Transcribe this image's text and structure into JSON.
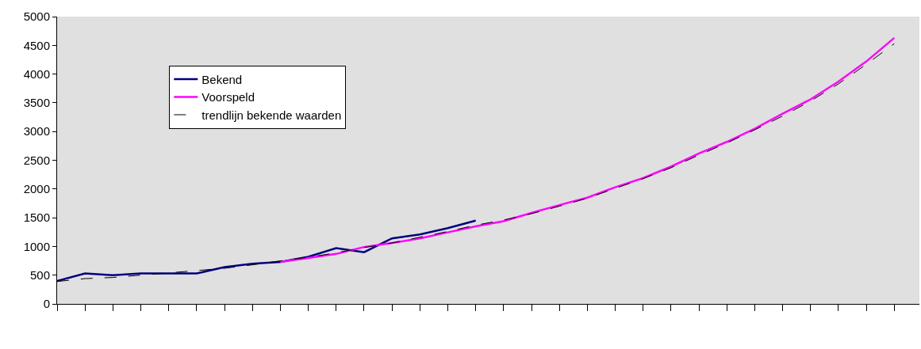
{
  "chart_data": {
    "type": "line",
    "categories": [
      null,
      null,
      null,
      null,
      null,
      null,
      null,
      null,
      null,
      null,
      null,
      null,
      null,
      null,
      null,
      null,
      null,
      null,
      null,
      null,
      null,
      null,
      null,
      null,
      null,
      null,
      null,
      null,
      null,
      null,
      null
    ],
    "series": [
      {
        "name": "Bekend",
        "color": "#000080",
        "line_style": "solid",
        "values": [
          400,
          530,
          500,
          530,
          530,
          530,
          640,
          700,
          730,
          820,
          970,
          900,
          1140,
          1210,
          1320,
          1450,
          null,
          null,
          null,
          null,
          null,
          null,
          null,
          null,
          null,
          null,
          null,
          null,
          null,
          null,
          null
        ]
      },
      {
        "name": "Voorspeld",
        "color": "#ff00ff",
        "line_style": "solid",
        "values": [
          null,
          null,
          null,
          null,
          null,
          null,
          null,
          null,
          730,
          800,
          870,
          990,
          1060,
          1140,
          1245,
          1350,
          1440,
          1585,
          1720,
          1850,
          2030,
          2190,
          2390,
          2620,
          2820,
          3050,
          3310,
          3560,
          3870,
          4220,
          4630
        ]
      },
      {
        "name": "trendlijn bekende waarden",
        "color": "#000000",
        "line_style": "dashed",
        "values": [
          390,
          440,
          460,
          500,
          540,
          580,
          620,
          680,
          750,
          810,
          890,
          980,
          1060,
          1160,
          1260,
          1370,
          1460,
          1570,
          1700,
          1840,
          2010,
          2180,
          2370,
          2590,
          2800,
          3030,
          3270,
          3530,
          3830,
          4170,
          4530
        ]
      }
    ],
    "ylim": [
      0,
      5000
    ],
    "yticks": [
      0,
      500,
      1000,
      1500,
      2000,
      2500,
      3000,
      3500,
      4000,
      4500,
      5000
    ],
    "grid": false,
    "legend": "top left",
    "marker": "none",
    "tick_labels": "y"
  }
}
